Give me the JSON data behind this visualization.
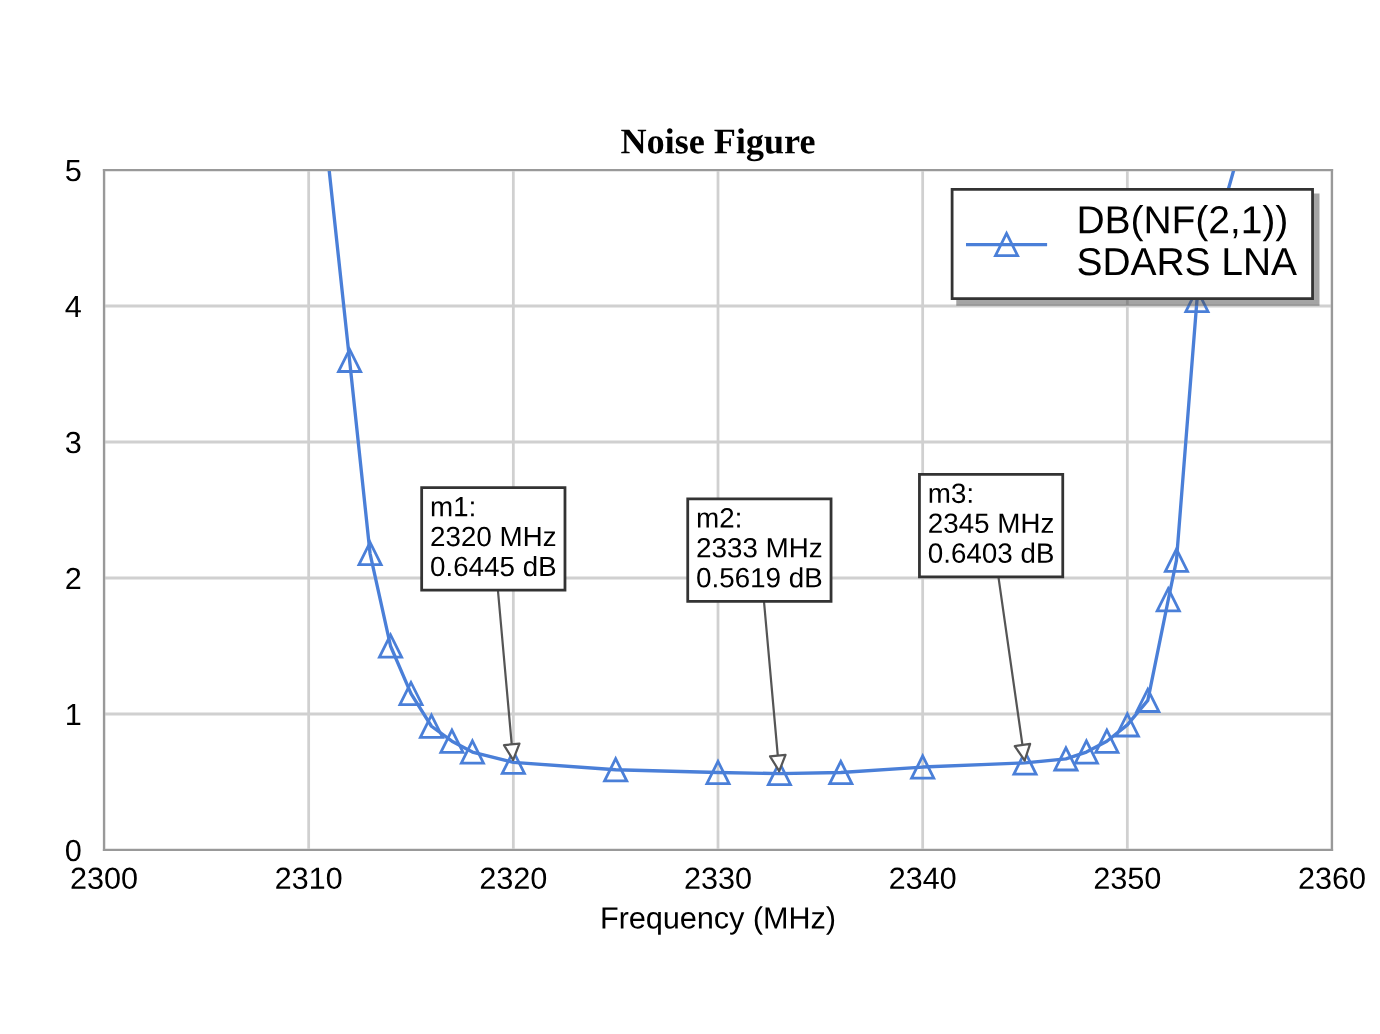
{
  "chart_data": {
    "type": "line",
    "title": "Noise Figure",
    "xlabel": "Frequency (MHz)",
    "x": [
      2311.0,
      2312,
      2313,
      2314,
      2315,
      2316,
      2317,
      2318,
      2320,
      2325,
      2330,
      2333,
      2336,
      2340,
      2345,
      2347,
      2348,
      2349,
      2350,
      2351,
      2352,
      2352.4,
      2353.4,
      2355.2
    ],
    "series": [
      {
        "name": "DB(NF(2,1))\nSDARS LNA",
        "color": "#4a7fd8",
        "values": [
          5.0,
          3.6,
          2.18,
          1.5,
          1.15,
          0.91,
          0.8,
          0.72,
          0.6445,
          0.59,
          0.57,
          0.5619,
          0.57,
          0.61,
          0.6403,
          0.67,
          0.72,
          0.8,
          0.92,
          1.1,
          1.84,
          2.13,
          4.04,
          5.0
        ]
      }
    ],
    "marker": "triangle",
    "xlim": [
      2300,
      2360
    ],
    "xticks": [
      2300,
      2310,
      2320,
      2330,
      2340,
      2350,
      2360
    ],
    "ylim": [
      0,
      5
    ],
    "yticks": [
      0,
      1,
      2,
      3,
      4,
      5
    ],
    "grid": true,
    "legend": "top right",
    "annotations": [
      {
        "text": "m1:\n2320 MHz\n0.6445 dB",
        "x": 2320,
        "y": 0.6445
      },
      {
        "text": "m2:\n2333 MHz\n0.5619 dB",
        "x": 2333,
        "y": 0.5619
      },
      {
        "text": "m3:\n2345 MHz\n0.6403 dB",
        "x": 2345,
        "y": 0.6403
      }
    ]
  }
}
